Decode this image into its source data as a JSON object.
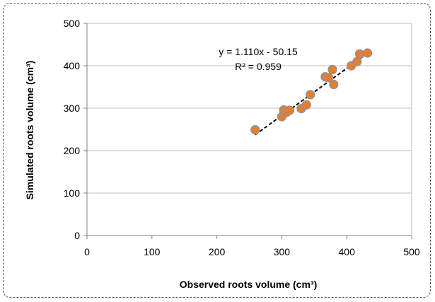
{
  "chart_data": {
    "type": "scatter",
    "xlabel": "Observed roots volume (cm³)",
    "ylabel": "Simulated roots volume (cm³)",
    "xlim": [
      0,
      500
    ],
    "ylim": [
      0,
      500
    ],
    "xticks": [
      0,
      100,
      200,
      300,
      400,
      500
    ],
    "yticks": [
      0,
      100,
      200,
      300,
      400,
      500
    ],
    "grid": "horizontal",
    "points": [
      {
        "x": 259,
        "y": 249
      },
      {
        "x": 300,
        "y": 280
      },
      {
        "x": 303,
        "y": 296
      },
      {
        "x": 307,
        "y": 290
      },
      {
        "x": 312,
        "y": 295
      },
      {
        "x": 330,
        "y": 299
      },
      {
        "x": 338,
        "y": 308
      },
      {
        "x": 344,
        "y": 332
      },
      {
        "x": 367,
        "y": 374
      },
      {
        "x": 372,
        "y": 372
      },
      {
        "x": 378,
        "y": 391
      },
      {
        "x": 380,
        "y": 356
      },
      {
        "x": 407,
        "y": 400
      },
      {
        "x": 416,
        "y": 410
      },
      {
        "x": 420,
        "y": 428
      },
      {
        "x": 432,
        "y": 430
      }
    ],
    "trendline": {
      "slope": 1.11,
      "intercept": -50.15,
      "x_range": [
        259,
        432
      ],
      "equation_label": "y = 1.110x - 50.15",
      "r2_label": "R² = 0.959"
    },
    "colors": {
      "marker_fill": "#E3802F",
      "marker_stroke": "#8A8FA8",
      "trendline": "#000000",
      "grid": "#BFBFBF",
      "axis": "#808080"
    }
  }
}
